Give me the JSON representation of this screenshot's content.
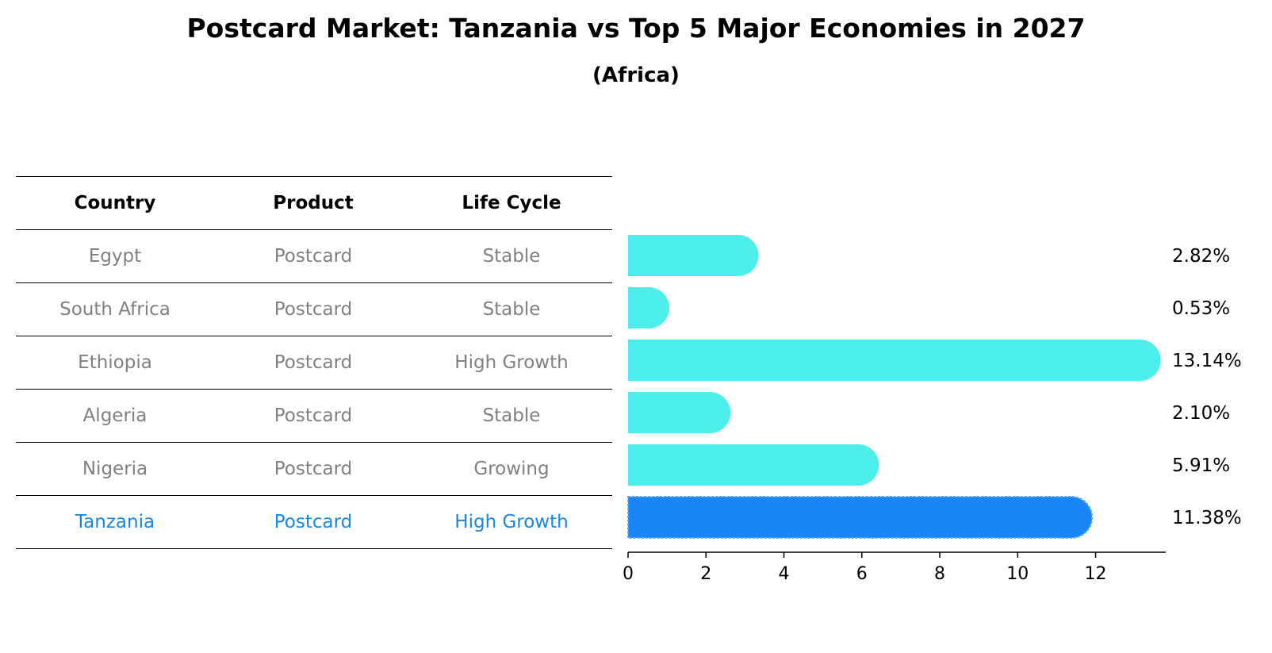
{
  "chart_data": {
    "type": "bar",
    "orientation": "horizontal",
    "title": "Postcard Market: Tanzania vs Top 5 Major Economies in 2027",
    "subtitle": "(Africa)",
    "table": {
      "headers": [
        "Country",
        "Product",
        "Life Cycle"
      ],
      "rows": [
        [
          "Egypt",
          "Postcard",
          "Stable"
        ],
        [
          "South Africa",
          "Postcard",
          "Stable"
        ],
        [
          "Ethiopia",
          "Postcard",
          "High Growth"
        ],
        [
          "Algeria",
          "Postcard",
          "Stable"
        ],
        [
          "Nigeria",
          "Postcard",
          "Growing"
        ],
        [
          "Tanzania",
          "Postcard",
          "High Growth"
        ]
      ]
    },
    "categories": [
      "Egypt",
      "South Africa",
      "Ethiopia",
      "Algeria",
      "Nigeria",
      "Tanzania"
    ],
    "values": [
      2.82,
      0.53,
      13.14,
      2.1,
      5.91,
      11.38
    ],
    "value_labels": [
      "2.82%",
      "0.53%",
      "13.14%",
      "2.10%",
      "5.91%",
      "11.38%"
    ],
    "highlight": "Tanzania",
    "xlim": [
      0,
      13.8
    ],
    "xticks": [
      0,
      2,
      4,
      6,
      8,
      10,
      12
    ],
    "xlabel": "",
    "ylabel": ""
  },
  "colors": {
    "bar": "#4deeea",
    "highlight_bar": "#1a86f5",
    "highlight_text": "#1a86e0",
    "muted_text": "#808080"
  }
}
